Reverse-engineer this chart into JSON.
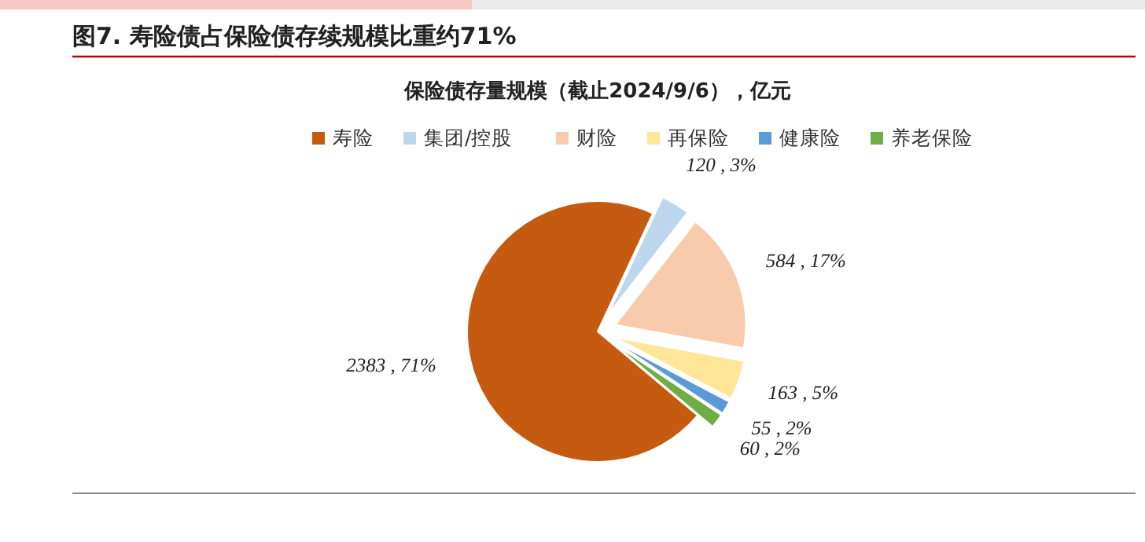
{
  "chart_data": {
    "type": "pie",
    "title": "图7. 寿险债占保险债存续规模比重约71%",
    "subtitle": "保险债存量规模（截止2024/9/6），亿元",
    "categories": [
      "寿险",
      "集团/控股",
      "财险",
      "再保险",
      "健康险",
      "养老保险"
    ],
    "values": [
      2383,
      120,
      584,
      163,
      55,
      60
    ],
    "colors": [
      "#c55a11",
      "#bdd7ee",
      "#f8cbad",
      "#ffe699",
      "#5b9bd5",
      "#70ad47"
    ],
    "value_labels": [
      "2383 , 71%",
      "120 , 3%",
      "584 , 17%",
      "163 , 5%",
      "55 , 2%",
      "60 , 2%"
    ],
    "legend": "top"
  }
}
